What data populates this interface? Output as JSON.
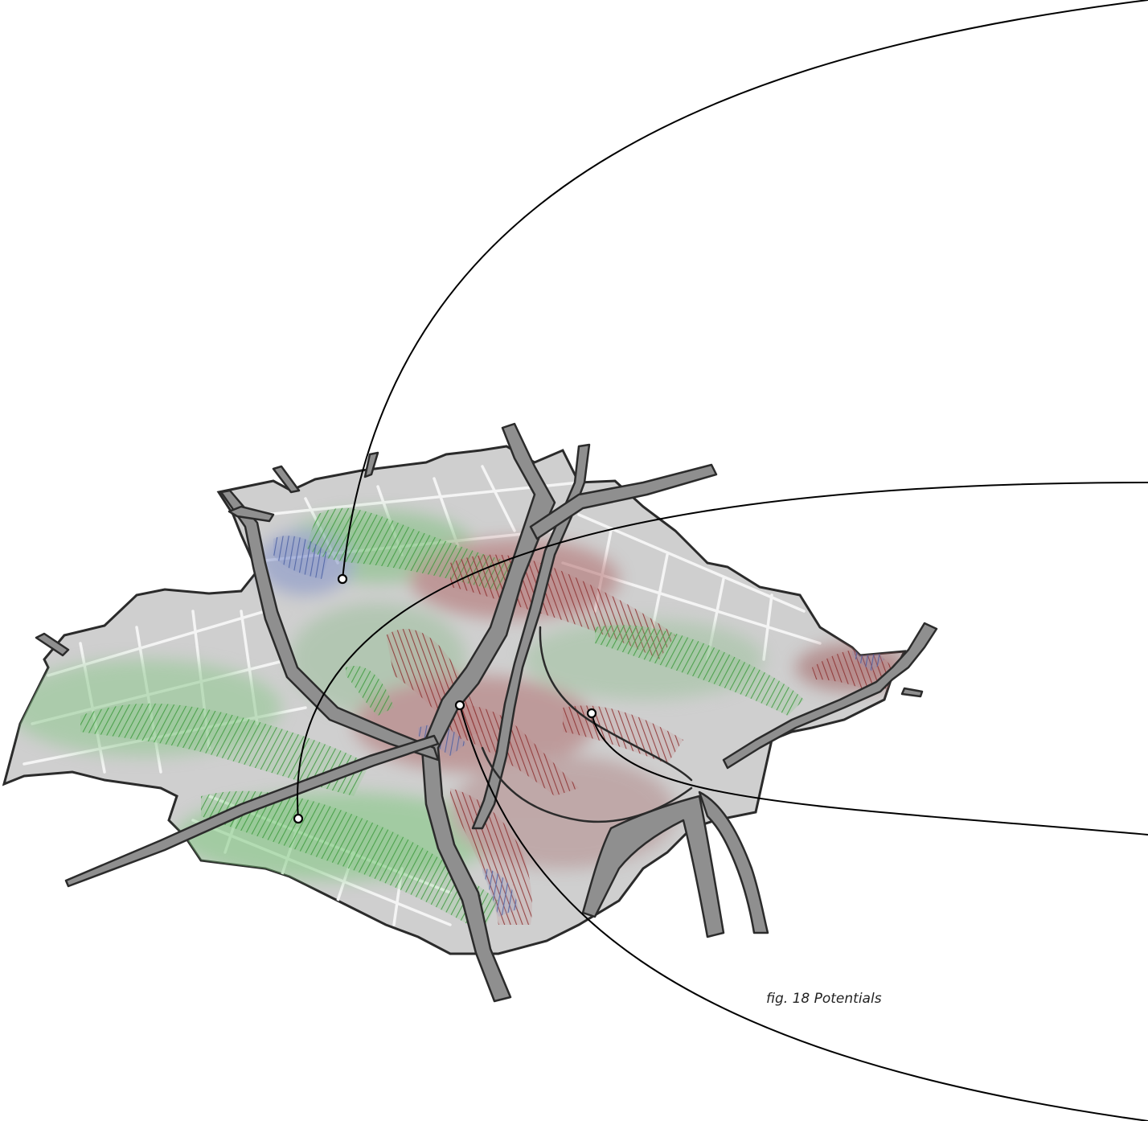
{
  "figure": {
    "caption": "fig. 18 Potentials",
    "subject": "3D terrain map of potentials with callout leader lines"
  },
  "colors": {
    "background": "#ffffff",
    "ground": "#c9c9c9",
    "street": "#f2f2f2",
    "road_fill": "#8a8a8a",
    "outline": "#2b2b2b",
    "ridge_green": "#3d9a3d",
    "ridge_red": "#8c2e2e",
    "ridge_blue": "#4a5fa3",
    "callout_line": "#000000"
  },
  "callouts": [
    {
      "id": "north-west"
    },
    {
      "id": "centre"
    },
    {
      "id": "east"
    },
    {
      "id": "south-west"
    }
  ]
}
